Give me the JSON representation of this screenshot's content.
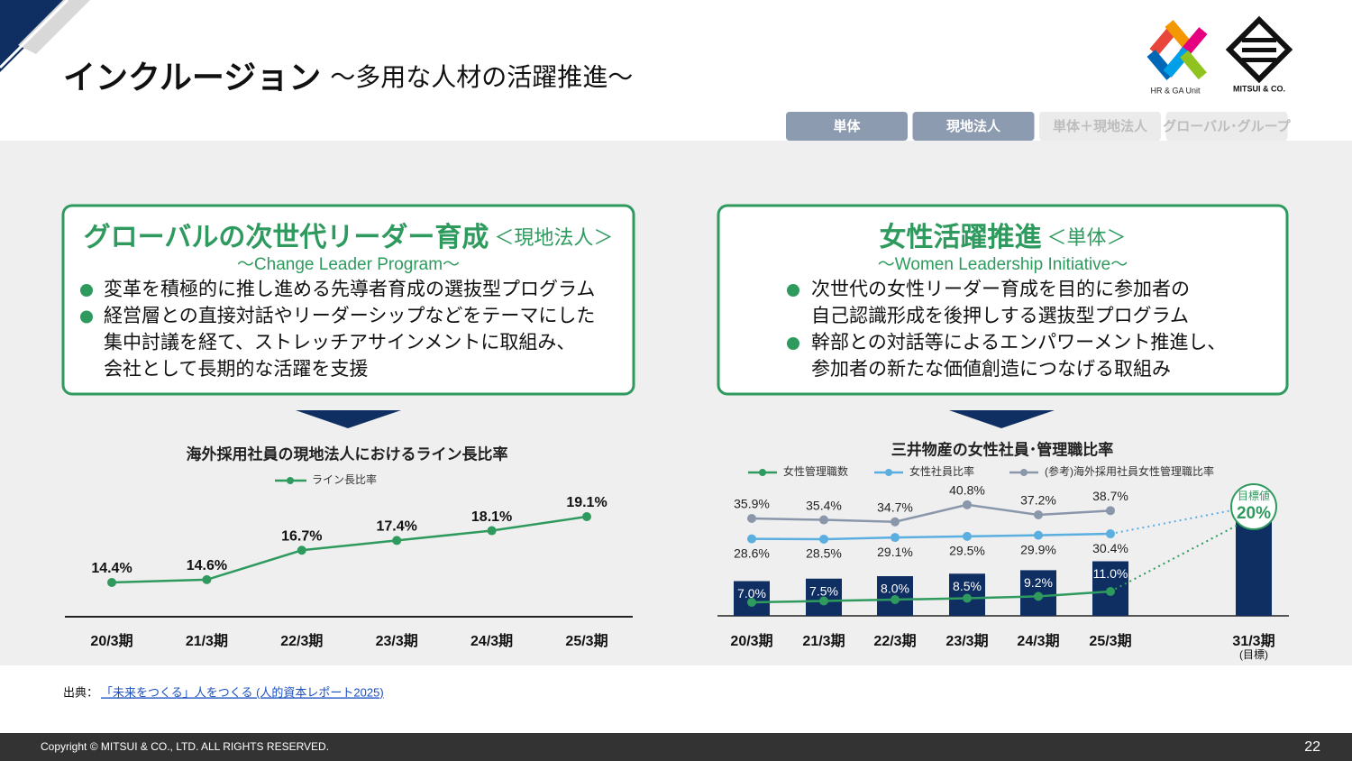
{
  "header": {
    "title": "インクルージョン",
    "subtitle": "～多用な人材の活躍推進～"
  },
  "logos": {
    "hr": "HR & GA Unit",
    "mitsui": "MITSUI & CO."
  },
  "tabs": [
    "単体",
    "現地法人",
    "単体＋現地法人",
    "グローバル･グループ"
  ],
  "panels": [
    {
      "title": "グローバルの次世代リーダー育成",
      "scope": "＜現地法人＞",
      "subtitle": "～Change Leader Program～",
      "bullets": [
        [
          "変革を積極的に推し進める先導者育成の選抜型プログラム"
        ],
        [
          "経営層との直接対話やリーダーシップなどをテーマにした",
          "集中討議を経て、ストレッチアサインメントに取組み、",
          "会社として長期的な活躍を支援"
        ]
      ]
    },
    {
      "title": "女性活躍推進",
      "scope": "＜単体＞",
      "subtitle": "～Women Leadership Initiative～",
      "bullets": [
        [
          "次世代の女性リーダー育成を目的に参加者の",
          "自己認識形成を後押しする選抜型プログラム"
        ],
        [
          "幹部との対話等によるエンパワーメント推進し、",
          "参加者の新たな価値創造につなげる取組み"
        ]
      ]
    }
  ],
  "chart_data": [
    {
      "type": "line",
      "title": "海外採用社員の現地法人におけるライン長比率",
      "categories": [
        "20/3期",
        "21/3期",
        "22/3期",
        "23/3期",
        "24/3期",
        "25/3期"
      ],
      "series": [
        {
          "name": "ライン長比率",
          "color": "#2e9a5e",
          "values": [
            14.4,
            14.6,
            16.7,
            17.4,
            18.1,
            19.1
          ],
          "value_labels": [
            "14.4%",
            "14.6%",
            "16.7%",
            "17.4%",
            "18.1%",
            "19.1%"
          ]
        }
      ]
    },
    {
      "type": "bar_line",
      "title": "三井物産の女性社員･管理職比率",
      "categories": [
        "20/3期",
        "21/3期",
        "22/3期",
        "23/3期",
        "24/3期",
        "25/3期",
        "31/3期"
      ],
      "target_note": "(目標)",
      "target_label": "目標値",
      "series": [
        {
          "name": "女性管理職数",
          "color": "#2e9a5e",
          "bar_color": "#0f2f63",
          "values": [
            7.0,
            7.5,
            8.0,
            8.5,
            9.2,
            11.0,
            20
          ],
          "value_labels": [
            "7.0%",
            "7.5%",
            "8.0%",
            "8.5%",
            "9.2%",
            "11.0%",
            "20%"
          ]
        },
        {
          "name": "女性社員比率",
          "color": "#5aaee0",
          "values": [
            28.6,
            28.5,
            29.1,
            29.5,
            29.9,
            30.4,
            null
          ],
          "value_labels": [
            "28.6%",
            "28.5%",
            "29.1%",
            "29.5%",
            "29.9%",
            "30.4%",
            null
          ]
        },
        {
          "name": "(参考)海外採用社員女性管理職比率",
          "color": "#8a97ab",
          "values": [
            35.9,
            35.4,
            34.7,
            40.8,
            37.2,
            38.7,
            null
          ],
          "value_labels": [
            "35.9%",
            "35.4%",
            "34.7%",
            "40.8%",
            "37.2%",
            "38.7%",
            null
          ]
        }
      ]
    }
  ],
  "source": {
    "label": "出典：",
    "link": "「未来をつくる」人をつくる (人的資本レポート2025)"
  },
  "footer": {
    "copyright": "Copyright © MITSUI & CO., LTD. ALL RIGHTS RESERVED.",
    "page": 22
  }
}
